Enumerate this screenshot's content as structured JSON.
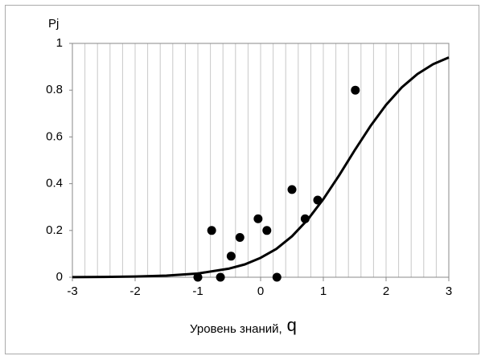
{
  "chart_data": {
    "type": "scatter",
    "ylabel": "Pj",
    "xlabel": "Уровень знаний,",
    "xlabel_symbol": "q",
    "xlim": [
      -3,
      3
    ],
    "ylim": [
      0,
      1
    ],
    "xticks": [
      -3,
      -2,
      -1,
      0,
      1,
      2,
      3
    ],
    "yticks": [
      0,
      0.2,
      0.4,
      0.6,
      0.8,
      1
    ],
    "xgrid": [
      -3,
      -2.8,
      -2.6,
      -2.4,
      -2.2,
      -2,
      -1.8,
      -1.6,
      -1.4,
      -1.2,
      -1,
      -0.8,
      -0.6,
      -0.4,
      -0.2,
      0,
      0.2,
      0.4,
      0.6,
      0.8,
      1,
      1.2,
      1.4,
      1.6,
      1.8,
      2,
      2.2,
      2.4,
      2.6,
      2.8,
      3
    ],
    "points": {
      "color": "#000000",
      "x": [
        -1.0,
        -0.78,
        -0.64,
        -0.47,
        -0.33,
        -0.04,
        0.1,
        0.26,
        0.5,
        0.71,
        0.91,
        1.51
      ],
      "values": [
        0,
        0.2,
        0,
        0.09,
        0.17,
        0.25,
        0.2,
        0,
        0.375,
        0.25,
        0.33,
        0.8
      ]
    },
    "curve": {
      "color": "#000000",
      "x": [
        -3,
        -2.5,
        -2,
        -1.5,
        -1,
        -0.5,
        -0.25,
        0,
        0.25,
        0.5,
        0.75,
        1,
        1.25,
        1.5,
        1.75,
        2,
        2.25,
        2.5,
        2.75,
        3
      ],
      "values": [
        0.0005,
        0.0012,
        0.0029,
        0.0068,
        0.016,
        0.037,
        0.055,
        0.083,
        0.121,
        0.175,
        0.246,
        0.334,
        0.435,
        0.543,
        0.646,
        0.737,
        0.812,
        0.869,
        0.911,
        0.94
      ]
    }
  }
}
